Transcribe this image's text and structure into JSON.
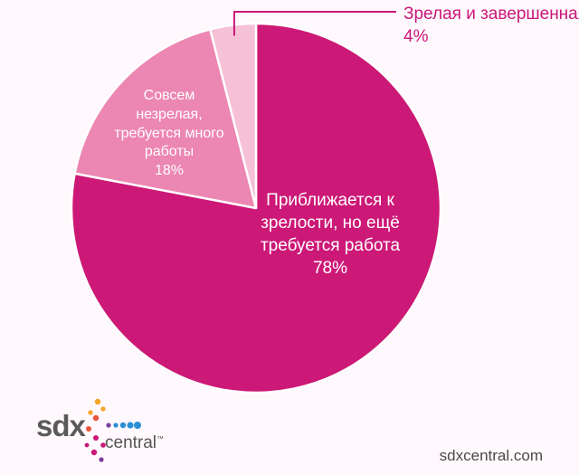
{
  "chart_data": {
    "type": "pie",
    "title": "",
    "slices": [
      {
        "label": "Приближается к зрелости, но ещё требуется работа",
        "lines": [
          "Приближается к",
          "зрелости, но ещё",
          "требуется работа"
        ],
        "value": 78,
        "value_label": "78%",
        "color": "#cc1877"
      },
      {
        "label": "Совсем незрелая, требуется много работы",
        "lines": [
          "Совсем",
          "незрелая,",
          "требуется много",
          "работы"
        ],
        "value": 18,
        "value_label": "18%",
        "color": "#ec86b2"
      },
      {
        "label": "Зрелая и завершенная",
        "lines": [
          "Зрелая и завершенная"
        ],
        "value": 4,
        "value_label": "4%",
        "color": "#f6c1d7"
      }
    ]
  },
  "branding": {
    "logo_primary": "sdx",
    "logo_secondary": "central",
    "logo_trademark": "™",
    "website": "sdxcentral.com"
  },
  "colors": {
    "callout_line": "#c9187a",
    "logo_dots": [
      "#f5a623",
      "#e8543a",
      "#c9187a",
      "#2a8fd6",
      "#7b3fa0"
    ]
  }
}
